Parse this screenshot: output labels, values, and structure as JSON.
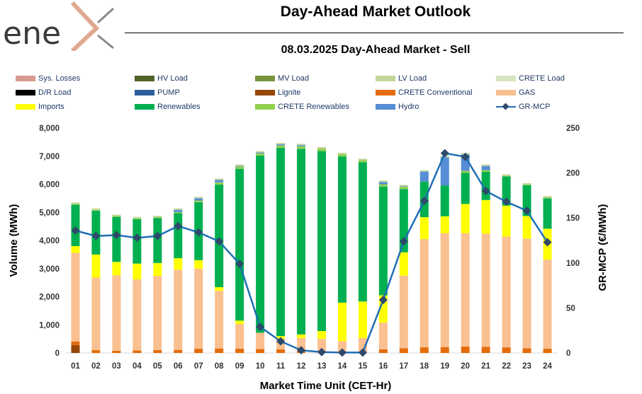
{
  "header": {
    "brand": "ene",
    "title": "Day-Ahead Market Outlook",
    "subtitle": "08.03.2025  Day-Ahead Market - Sell"
  },
  "chart_data": {
    "type": "bar",
    "stacked": true,
    "categories": [
      "01",
      "02",
      "03",
      "04",
      "05",
      "06",
      "07",
      "08",
      "09",
      "10",
      "11",
      "12",
      "13",
      "14",
      "15",
      "16",
      "17",
      "18",
      "19",
      "20",
      "21",
      "22",
      "23",
      "24"
    ],
    "xlabel": "Market Time Unit (CET-Hr)",
    "ylabel": "Volume (MWh)",
    "y2label": "GR-MCP (€/MWh)",
    "ylim": [
      0,
      8000
    ],
    "yticks": [
      0,
      1000,
      2000,
      3000,
      4000,
      5000,
      6000,
      7000,
      8000
    ],
    "ytick_labels": [
      "0",
      "1,000",
      "2,000",
      "3,000",
      "4,000",
      "5,000",
      "6,000",
      "7,000",
      "8,000"
    ],
    "y2lim": [
      0,
      250
    ],
    "y2ticks": [
      0,
      50,
      100,
      150,
      200,
      250
    ],
    "y2tick_labels": [
      "0",
      "50",
      "100",
      "150",
      "200",
      "250"
    ],
    "legend": [
      {
        "name": "Sys. Losses",
        "color": "#d99a8e",
        "kind": "bar"
      },
      {
        "name": "HV Load",
        "color": "#4f6228",
        "kind": "bar"
      },
      {
        "name": "MV Load",
        "color": "#77933c",
        "kind": "bar"
      },
      {
        "name": "LV Load",
        "color": "#c3d69b",
        "kind": "bar"
      },
      {
        "name": "CRETE Load",
        "color": "#d7e4bd",
        "kind": "bar"
      },
      {
        "name": "D/R Load",
        "color": "#000000",
        "kind": "bar"
      },
      {
        "name": "PUMP",
        "color": "#2e5e9e",
        "kind": "bar"
      },
      {
        "name": "Lignite",
        "color": "#974706",
        "kind": "bar"
      },
      {
        "name": "CRETE Conventional",
        "color": "#e46c0a",
        "kind": "bar"
      },
      {
        "name": "GAS",
        "color": "#fac090",
        "kind": "bar"
      },
      {
        "name": "Imports",
        "color": "#ffff00",
        "kind": "bar"
      },
      {
        "name": "Renewables",
        "color": "#00b050",
        "kind": "bar"
      },
      {
        "name": "CRETE Renewables",
        "color": "#92d050",
        "kind": "bar"
      },
      {
        "name": "Hydro",
        "color": "#558ed5",
        "kind": "bar"
      },
      {
        "name": "GR-MCP",
        "color": "#1f6fb5",
        "kind": "line"
      }
    ],
    "series": [
      {
        "name": "Lignite",
        "color": "#974706",
        "values": [
          280,
          0,
          0,
          0,
          0,
          0,
          0,
          0,
          0,
          0,
          0,
          0,
          0,
          0,
          0,
          0,
          0,
          0,
          0,
          0,
          0,
          0,
          0,
          0
        ]
      },
      {
        "name": "CRETE Conventional",
        "color": "#e46c0a",
        "values": [
          130,
          100,
          80,
          90,
          100,
          110,
          150,
          160,
          150,
          140,
          130,
          80,
          0,
          0,
          0,
          130,
          170,
          200,
          210,
          230,
          220,
          200,
          170,
          150
        ]
      },
      {
        "name": "GAS",
        "color": "#fac090",
        "values": [
          3150,
          2580,
          2680,
          2530,
          2640,
          2850,
          2850,
          2050,
          880,
          580,
          380,
          450,
          500,
          420,
          530,
          950,
          2580,
          3850,
          4050,
          4030,
          4020,
          3940,
          3900,
          3170
        ]
      },
      {
        "name": "Imports",
        "color": "#ffff00",
        "values": [
          240,
          820,
          480,
          560,
          460,
          410,
          300,
          130,
          120,
          0,
          90,
          130,
          280,
          1370,
          1300,
          970,
          830,
          780,
          600,
          1040,
          1200,
          1100,
          800,
          1100
        ]
      },
      {
        "name": "Renewables",
        "color": "#00b050",
        "values": [
          1470,
          1560,
          1600,
          1580,
          1600,
          1600,
          2060,
          3650,
          5400,
          6300,
          6700,
          6600,
          6400,
          5200,
          4950,
          3870,
          2250,
          1260,
          1100,
          1110,
          1000,
          1040,
          1100,
          1080
        ]
      },
      {
        "name": "CRETE Renewables",
        "color": "#92d050",
        "values": [
          30,
          30,
          30,
          30,
          30,
          40,
          60,
          80,
          80,
          80,
          80,
          90,
          90,
          80,
          80,
          80,
          80,
          0,
          0,
          70,
          60,
          20,
          20,
          30
        ]
      },
      {
        "name": "Hydro",
        "color": "#558ed5",
        "values": [
          0,
          0,
          0,
          0,
          0,
          80,
          80,
          80,
          20,
          30,
          40,
          40,
          0,
          0,
          0,
          80,
          20,
          360,
          1000,
          580,
          150,
          0,
          0,
          0
        ]
      }
    ],
    "line": {
      "name": "GR-MCP",
      "color": "#1f6fb5",
      "axis": "y2",
      "values": [
        136,
        130,
        131,
        128,
        130,
        141,
        134,
        124,
        99,
        29,
        13,
        3,
        1,
        0.5,
        0.5,
        59,
        124,
        169,
        222,
        218,
        180,
        168,
        158,
        123
      ]
    }
  }
}
